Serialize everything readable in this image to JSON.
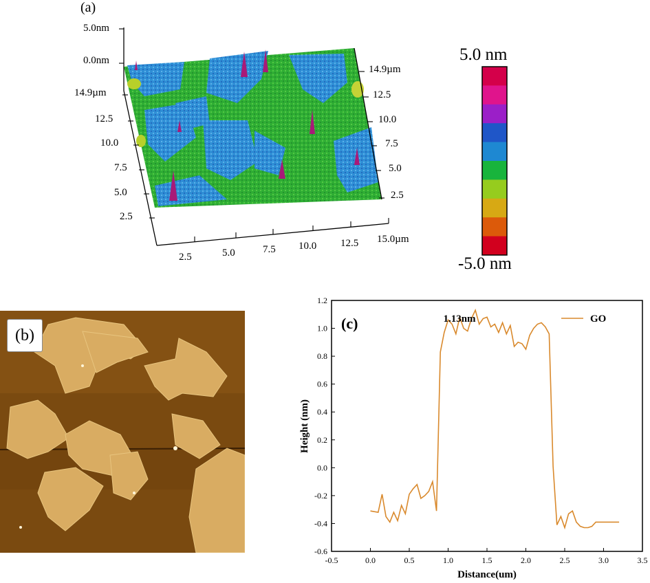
{
  "panel_a": {
    "label": "(a)",
    "z_ticks": [
      "5.0nm",
      "0.0nm"
    ],
    "y_left_ticks": [
      "14.9µm",
      "12.5",
      "10.0",
      "7.5",
      "5.0",
      "2.5"
    ],
    "y_right_ticks": [
      "14.9µm",
      "12.5",
      "10.0",
      "7.5",
      "5.0",
      "2.5"
    ],
    "x_ticks": [
      "2.5",
      "5.0",
      "7.5",
      "10.0",
      "12.5",
      "15.0µm"
    ],
    "colorbar": {
      "top_label": "5.0 nm",
      "bottom_label": "-5.0 nm",
      "colors": [
        "#d4004a",
        "#e0148c",
        "#9b1fc8",
        "#1f56c8",
        "#1e88d2",
        "#18b43c",
        "#96cc1e",
        "#d7a914",
        "#dc5a0a",
        "#d2001e"
      ]
    }
  },
  "panel_b": {
    "label": "(b)"
  },
  "chart_data": {
    "type": "line",
    "panel_label": "(c)",
    "xlabel": "Distance(um)",
    "ylabel": "Height (nm)",
    "xlim": [
      -0.5,
      3.5
    ],
    "ylim": [
      -0.6,
      1.2
    ],
    "x_ticks": [
      -0.5,
      0.0,
      0.5,
      1.0,
      1.5,
      2.0,
      2.5,
      3.0,
      3.5
    ],
    "y_ticks": [
      -0.6,
      -0.4,
      -0.2,
      0.0,
      0.2,
      0.4,
      0.6,
      0.8,
      1.0,
      1.2
    ],
    "annotation": "1.13nm",
    "legend_position": "top-right",
    "color": "#d9892c",
    "series": [
      {
        "name": "GO",
        "x": [
          0.0,
          0.1,
          0.15,
          0.2,
          0.25,
          0.3,
          0.35,
          0.4,
          0.45,
          0.5,
          0.55,
          0.6,
          0.65,
          0.7,
          0.75,
          0.8,
          0.85,
          0.9,
          0.95,
          1.0,
          1.05,
          1.1,
          1.15,
          1.2,
          1.25,
          1.3,
          1.35,
          1.4,
          1.45,
          1.5,
          1.55,
          1.6,
          1.65,
          1.7,
          1.75,
          1.8,
          1.85,
          1.9,
          1.95,
          2.0,
          2.05,
          2.1,
          2.15,
          2.2,
          2.25,
          2.3,
          2.35,
          2.4,
          2.45,
          2.5,
          2.55,
          2.6,
          2.65,
          2.7,
          2.75,
          2.8,
          2.85,
          2.9,
          2.95,
          3.0,
          3.05,
          3.1,
          3.15,
          3.2
        ],
        "y": [
          -0.31,
          -0.32,
          -0.19,
          -0.35,
          -0.39,
          -0.32,
          -0.38,
          -0.27,
          -0.33,
          -0.19,
          -0.15,
          -0.12,
          -0.22,
          -0.2,
          -0.17,
          -0.1,
          -0.31,
          0.83,
          0.97,
          1.06,
          1.03,
          0.96,
          1.08,
          1.0,
          0.98,
          1.07,
          1.13,
          1.03,
          1.07,
          1.08,
          1.01,
          1.03,
          0.97,
          1.04,
          0.96,
          1.02,
          0.87,
          0.9,
          0.89,
          0.85,
          0.95,
          1.0,
          1.03,
          1.04,
          1.01,
          0.96,
          0.01,
          -0.41,
          -0.35,
          -0.43,
          -0.33,
          -0.31,
          -0.39,
          -0.42,
          -0.43,
          -0.43,
          -0.42,
          -0.39,
          -0.39,
          -0.39,
          -0.39,
          -0.39,
          -0.39,
          -0.39
        ]
      }
    ]
  }
}
